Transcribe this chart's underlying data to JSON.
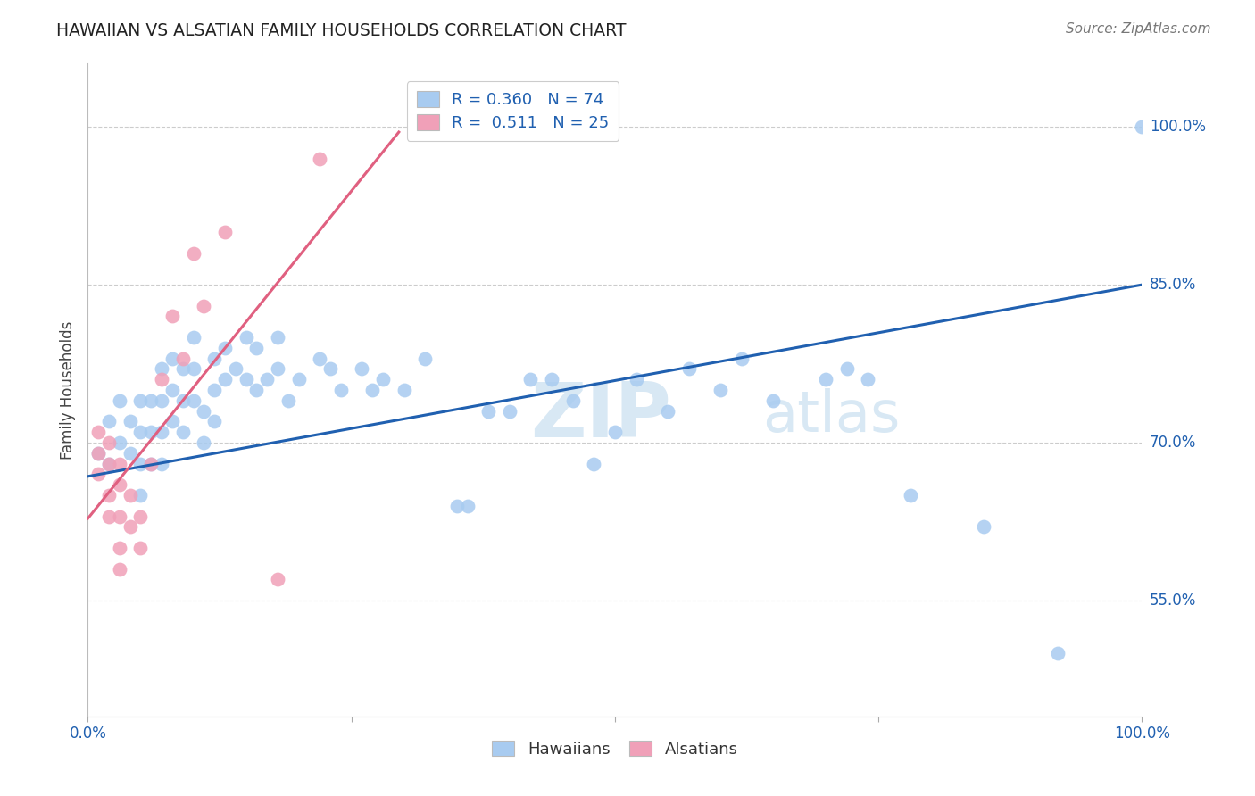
{
  "title": "HAWAIIAN VS ALSATIAN FAMILY HOUSEHOLDS CORRELATION CHART",
  "source": "Source: ZipAtlas.com",
  "ylabel": "Family Households",
  "y_tick_labels": [
    "55.0%",
    "70.0%",
    "85.0%",
    "100.0%"
  ],
  "y_tick_values": [
    0.55,
    0.7,
    0.85,
    1.0
  ],
  "x_range": [
    0.0,
    1.0
  ],
  "y_range": [
    0.44,
    1.06
  ],
  "legend_blue_r": "0.360",
  "legend_blue_n": "74",
  "legend_pink_r": "0.511",
  "legend_pink_n": "25",
  "legend_label_blue": "Hawaiians",
  "legend_label_pink": "Alsatians",
  "blue_color": "#A8CBF0",
  "pink_color": "#F0A0B8",
  "blue_line_color": "#2060B0",
  "pink_line_color": "#E06080",
  "blue_line_x": [
    0.0,
    1.0
  ],
  "blue_line_y": [
    0.668,
    0.85
  ],
  "pink_line_x": [
    0.0,
    0.295
  ],
  "pink_line_y": [
    0.628,
    0.995
  ],
  "hawaiians_x": [
    0.01,
    0.02,
    0.02,
    0.03,
    0.03,
    0.04,
    0.04,
    0.05,
    0.05,
    0.05,
    0.05,
    0.06,
    0.06,
    0.06,
    0.07,
    0.07,
    0.07,
    0.07,
    0.08,
    0.08,
    0.08,
    0.09,
    0.09,
    0.09,
    0.1,
    0.1,
    0.1,
    0.11,
    0.11,
    0.12,
    0.12,
    0.12,
    0.13,
    0.13,
    0.14,
    0.15,
    0.15,
    0.16,
    0.16,
    0.17,
    0.18,
    0.18,
    0.19,
    0.2,
    0.22,
    0.23,
    0.24,
    0.26,
    0.27,
    0.28,
    0.3,
    0.32,
    0.35,
    0.36,
    0.38,
    0.4,
    0.42,
    0.44,
    0.46,
    0.48,
    0.5,
    0.52,
    0.55,
    0.57,
    0.6,
    0.62,
    0.65,
    0.7,
    0.72,
    0.74,
    0.78,
    0.85,
    0.92,
    1.0
  ],
  "hawaiians_y": [
    0.69,
    0.72,
    0.68,
    0.74,
    0.7,
    0.72,
    0.69,
    0.74,
    0.71,
    0.68,
    0.65,
    0.74,
    0.71,
    0.68,
    0.77,
    0.74,
    0.71,
    0.68,
    0.78,
    0.75,
    0.72,
    0.77,
    0.74,
    0.71,
    0.8,
    0.77,
    0.74,
    0.73,
    0.7,
    0.78,
    0.75,
    0.72,
    0.79,
    0.76,
    0.77,
    0.8,
    0.76,
    0.79,
    0.75,
    0.76,
    0.8,
    0.77,
    0.74,
    0.76,
    0.78,
    0.77,
    0.75,
    0.77,
    0.75,
    0.76,
    0.75,
    0.78,
    0.64,
    0.64,
    0.73,
    0.73,
    0.76,
    0.76,
    0.74,
    0.68,
    0.71,
    0.76,
    0.73,
    0.77,
    0.75,
    0.78,
    0.74,
    0.76,
    0.77,
    0.76,
    0.65,
    0.62,
    0.5,
    1.0
  ],
  "alsatians_x": [
    0.01,
    0.01,
    0.01,
    0.02,
    0.02,
    0.02,
    0.02,
    0.03,
    0.03,
    0.03,
    0.03,
    0.03,
    0.04,
    0.04,
    0.05,
    0.05,
    0.06,
    0.07,
    0.08,
    0.09,
    0.1,
    0.11,
    0.13,
    0.18,
    0.22
  ],
  "alsatians_y": [
    0.71,
    0.69,
    0.67,
    0.7,
    0.68,
    0.65,
    0.63,
    0.68,
    0.66,
    0.63,
    0.6,
    0.58,
    0.65,
    0.62,
    0.63,
    0.6,
    0.68,
    0.76,
    0.82,
    0.78,
    0.88,
    0.83,
    0.9,
    0.57,
    0.97
  ],
  "watermark_text": "ZIPatlas",
  "background_color": "#FFFFFF",
  "grid_color": "#CCCCCC"
}
